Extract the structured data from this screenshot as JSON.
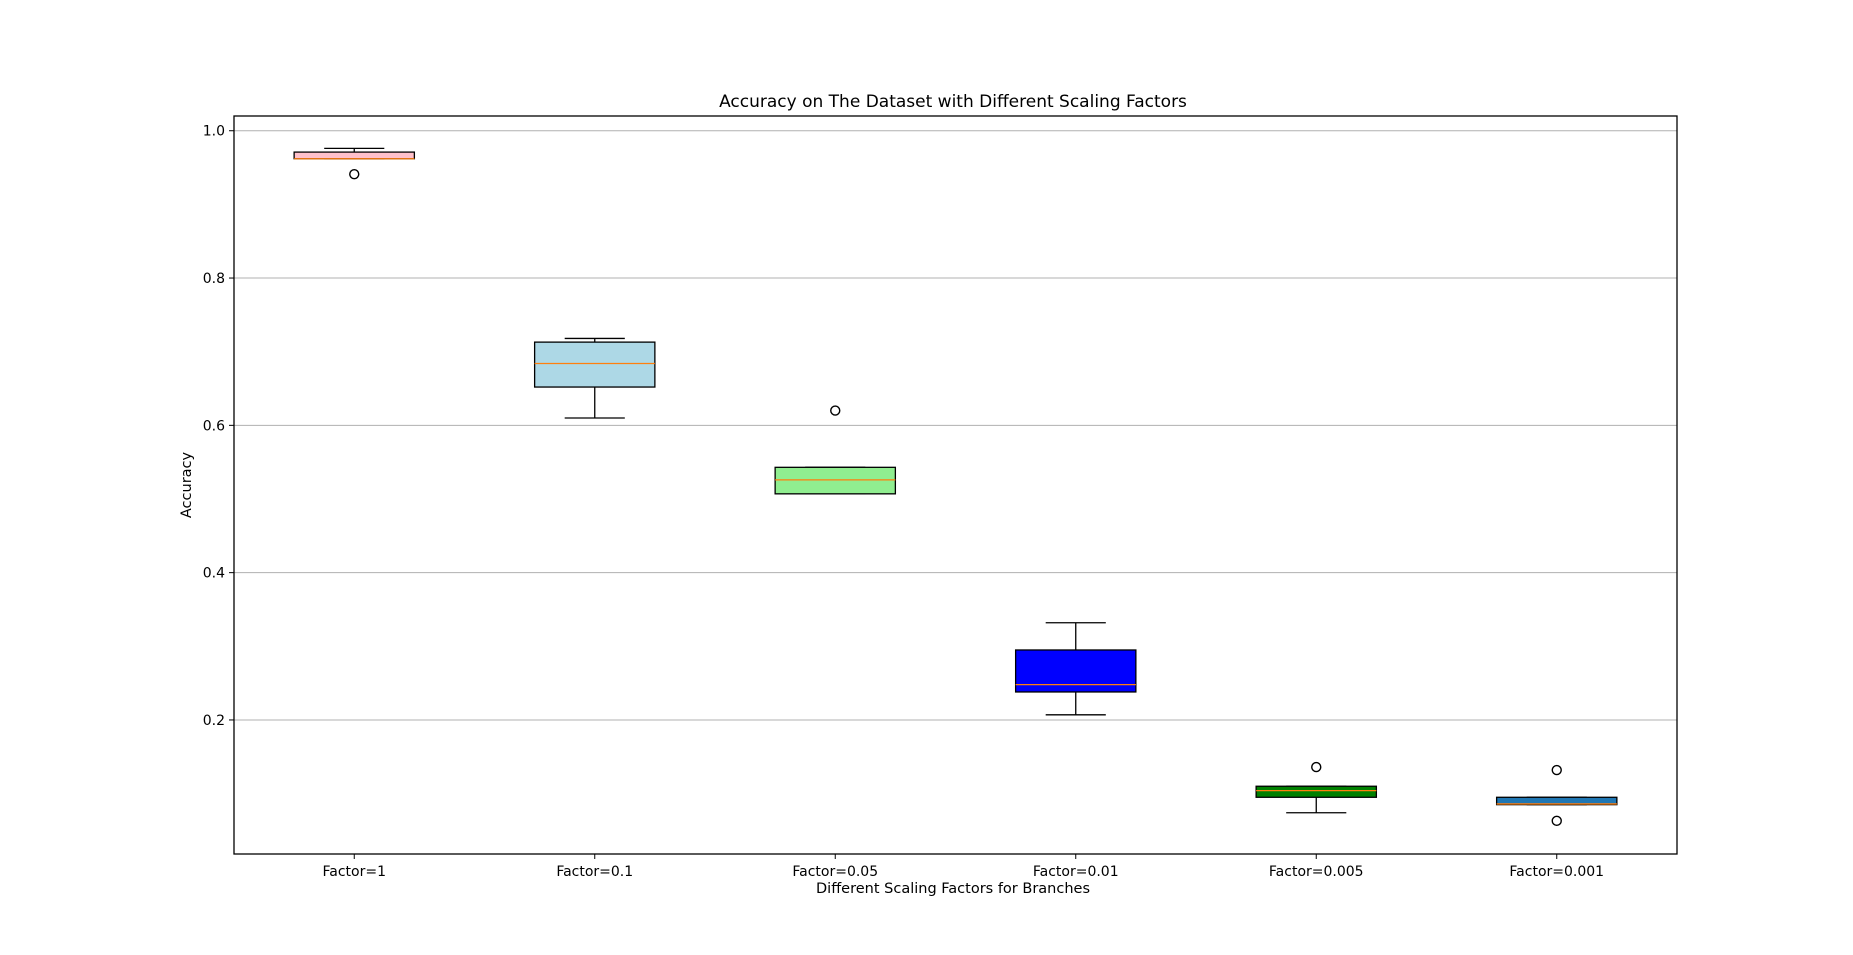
{
  "chart_data": {
    "type": "boxplot",
    "title": "Accuracy on The Dataset with Different Scaling Factors",
    "xlabel": "Different Scaling Factors for Branches",
    "ylabel": "Accuracy",
    "ylim": [
      0.018,
      1.02
    ],
    "yticks": [
      0.2,
      0.4,
      0.6,
      0.8,
      1.0
    ],
    "ytick_labels": [
      "0.2",
      "0.4",
      "0.6",
      "0.8",
      "1.0"
    ],
    "grid": "y",
    "median_color": "#ff7f0e",
    "categories": [
      "Factor=1",
      "Factor=0.1",
      "Factor=0.05",
      "Factor=0.01",
      "Factor=0.005",
      "Factor=0.001"
    ],
    "boxes": [
      {
        "whislo": 0.962,
        "q1": 0.962,
        "med": 0.962,
        "q3": 0.971,
        "whishi": 0.976,
        "fliers": [
          0.941
        ],
        "color": "#ffc0cb"
      },
      {
        "whislo": 0.61,
        "q1": 0.652,
        "med": 0.684,
        "q3": 0.713,
        "whishi": 0.718,
        "fliers": [],
        "color": "#add8e6"
      },
      {
        "whislo": 0.507,
        "q1": 0.507,
        "med": 0.526,
        "q3": 0.543,
        "whishi": 0.543,
        "fliers": [
          0.62
        ],
        "color": "#90ee90"
      },
      {
        "whislo": 0.207,
        "q1": 0.238,
        "med": 0.248,
        "q3": 0.295,
        "whishi": 0.332,
        "fliers": [],
        "color": "#0000ff"
      },
      {
        "whislo": 0.074,
        "q1": 0.095,
        "med": 0.104,
        "q3": 0.11,
        "whishi": 0.11,
        "fliers": [
          0.136
        ],
        "color": "#008000"
      },
      {
        "whislo": 0.085,
        "q1": 0.085,
        "med": 0.086,
        "q3": 0.095,
        "whishi": 0.095,
        "fliers": [
          0.132,
          0.063
        ],
        "color": "#1f77b4"
      }
    ]
  }
}
